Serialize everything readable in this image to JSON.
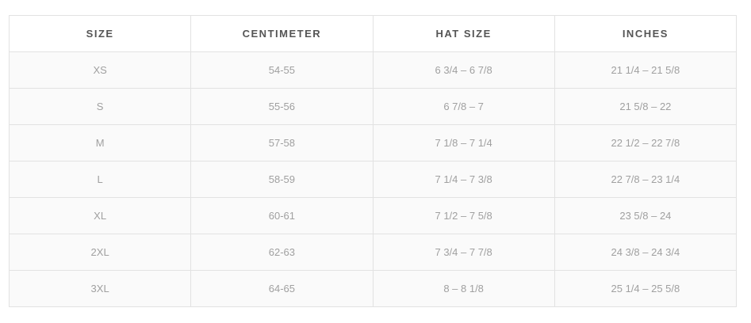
{
  "table": {
    "headers": [
      "SIZE",
      "CENTIMETER",
      "HAT SIZE",
      "INCHES"
    ],
    "rows": [
      [
        "XS",
        "54-55",
        "6 3/4 – 6 7/8",
        "21 1/4 – 21 5/8"
      ],
      [
        "S",
        "55-56",
        "6 7/8 – 7",
        "21 5/8 – 22"
      ],
      [
        "M",
        "57-58",
        "7 1/8 – 7 1/4",
        "22 1/2 – 22 7/8"
      ],
      [
        "L",
        "58-59",
        "7 1/4 – 7 3/8",
        "22 7/8 – 23 1/4"
      ],
      [
        "XL",
        "60-61",
        "7 1/2 – 7 5/8",
        "23 5/8 – 24"
      ],
      [
        "2XL",
        "62-63",
        "7 3/4 – 7 7/8",
        "24 3/8 – 24 3/4"
      ],
      [
        "3XL",
        "64-65",
        "8 – 8 1/8",
        "25 1/4 – 25 5/8"
      ]
    ]
  }
}
